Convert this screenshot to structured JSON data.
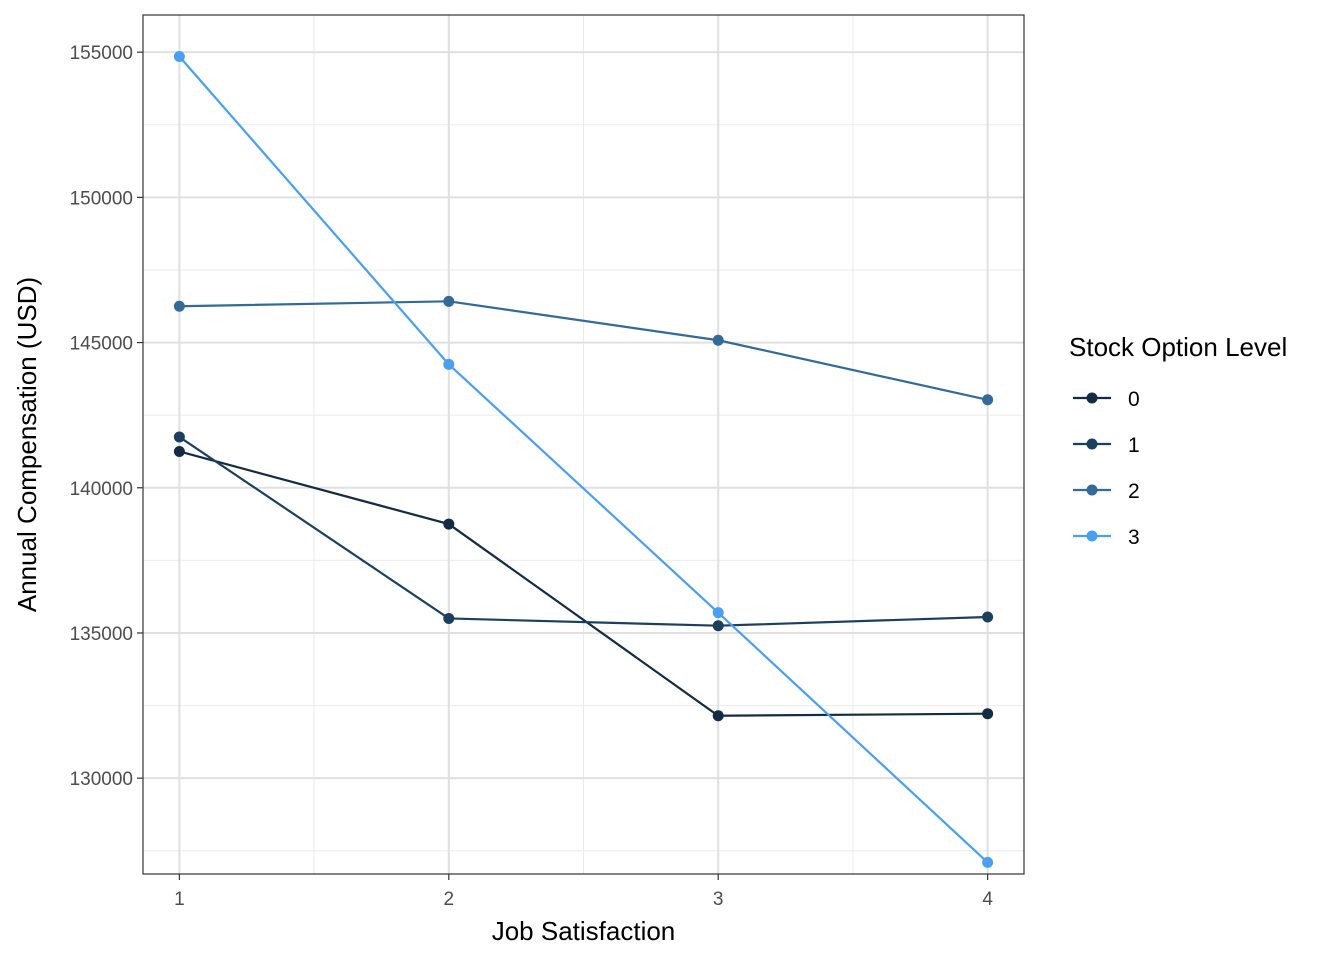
{
  "chart_data": {
    "type": "line",
    "title": "",
    "xlabel": "Job Satisfaction",
    "ylabel": "Annual Compensation (USD)",
    "x": [
      1,
      2,
      3,
      4
    ],
    "x_ticks": [
      "1",
      "2",
      "3",
      "4"
    ],
    "xlim": [
      0.865,
      4.135
    ],
    "y_ticks": [
      130000,
      135000,
      140000,
      145000,
      150000,
      155000
    ],
    "y_tick_labels": [
      "130000",
      "135000",
      "140000",
      "145000",
      "150000",
      "155000"
    ],
    "ylim": [
      126700,
      156280
    ],
    "grid": true,
    "legend": {
      "title": "Stock Option Level",
      "position": "right"
    },
    "series": [
      {
        "name": "0",
        "color": "#132B43",
        "values": [
          141250,
          138750,
          132150,
          132220
        ]
      },
      {
        "name": "1",
        "color": "#1D3F5E",
        "values": [
          141750,
          135500,
          135250,
          135550
        ]
      },
      {
        "name": "2",
        "color": "#336A98",
        "values": [
          146250,
          146420,
          145080,
          143030
        ]
      },
      {
        "name": "3",
        "color": "#4A9FF0",
        "values": [
          154850,
          144250,
          135700,
          127100
        ]
      }
    ]
  }
}
